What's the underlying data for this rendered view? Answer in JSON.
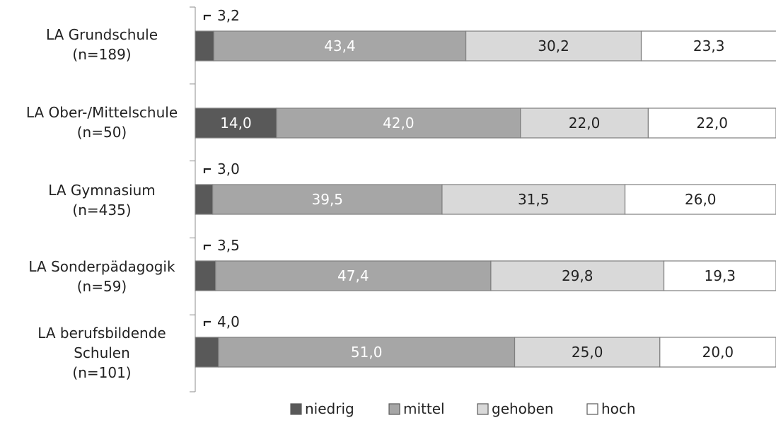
{
  "chart_data": {
    "type": "bar",
    "orientation": "horizontal",
    "stacked": true,
    "value_unit": "percent",
    "xlim": [
      0,
      100
    ],
    "grid": false,
    "legend_position": "bottom-center",
    "categories": [
      [
        "LA Grundschule",
        "(n=189)"
      ],
      [
        "LA Ober-/Mittelschule",
        "(n=50)"
      ],
      [
        "LA Gymnasium",
        "(n=435)"
      ],
      [
        "LA Sonderpädagogik",
        "(n=59)"
      ],
      [
        "LA berufsbildende",
        "Schulen",
        "(n=101)"
      ]
    ],
    "series": [
      {
        "name": "niedrig",
        "color": "#595959",
        "label_color": "#ffffff",
        "values": [
          3.2,
          14.0,
          3.0,
          3.5,
          4.0
        ],
        "labels": [
          "3,2",
          "14,0",
          "3,0",
          "3,5",
          "4,0"
        ]
      },
      {
        "name": "mittel",
        "color": "#a6a6a6",
        "label_color": "#ffffff",
        "values": [
          43.4,
          42.0,
          39.5,
          47.4,
          51.0
        ],
        "labels": [
          "43,4",
          "42,0",
          "39,5",
          "47,4",
          "51,0"
        ]
      },
      {
        "name": "gehoben",
        "color": "#d9d9d9",
        "label_color": "#222222",
        "values": [
          30.2,
          22.0,
          31.5,
          29.8,
          25.0
        ],
        "labels": [
          "30,2",
          "22,0",
          "31,5",
          "29,8",
          "25,0"
        ]
      },
      {
        "name": "hoch",
        "color": "#ffffff",
        "label_color": "#222222",
        "values": [
          23.3,
          22.0,
          26.0,
          19.3,
          20.0
        ],
        "labels": [
          "23,3",
          "22,0",
          "26,0",
          "19,3",
          "20,0"
        ]
      }
    ],
    "outside_labels": [
      true,
      false,
      true,
      true,
      true
    ]
  }
}
